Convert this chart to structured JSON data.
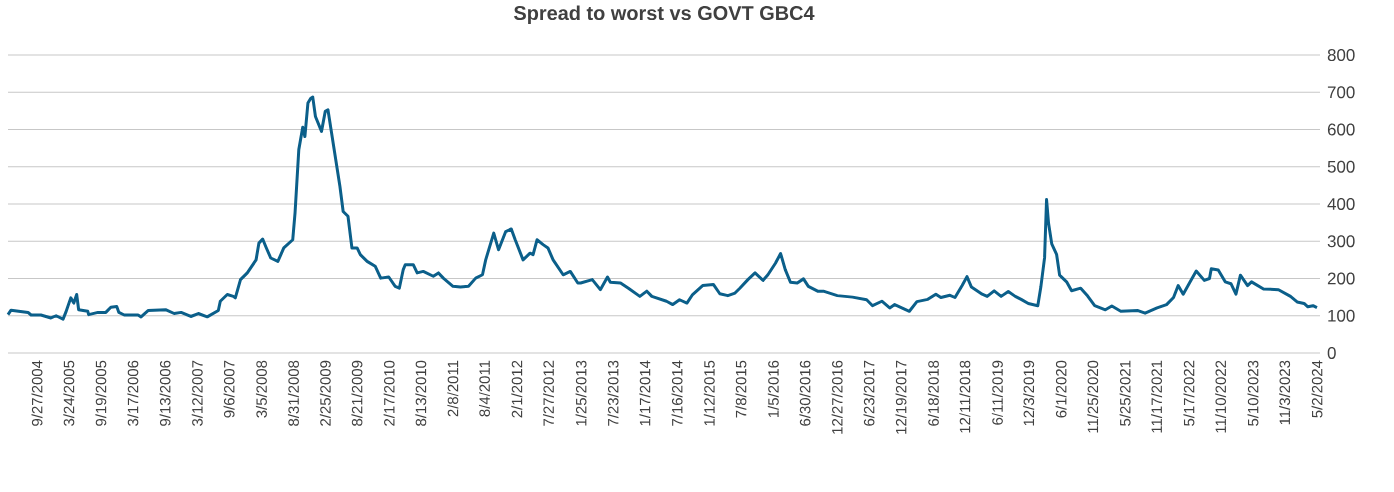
{
  "chart_data": {
    "type": "line",
    "title": "Spread to worst vs GOVT GBC4",
    "color": "#0b5f8a",
    "marker": "none",
    "line_style": "solid",
    "grid": "y",
    "x": [
      "2004-04-18",
      "2004-05-05",
      "2004-08-08",
      "2004-08-25",
      "2004-10-19",
      "2004-12-14",
      "2005-01-12",
      "2005-02-20",
      "2005-03-07",
      "2005-04-04",
      "2005-04-21",
      "2005-05-07",
      "2005-05-18",
      "2005-07-08",
      "2005-07-13",
      "2005-09-03",
      "2005-10-17",
      "2005-11-14",
      "2005-12-17",
      "2005-12-29",
      "2006-01-28",
      "2006-04-15",
      "2006-05-02",
      "2006-06-10",
      "2006-09-19",
      "2006-11-03",
      "2006-12-12",
      "2007-02-04",
      "2007-03-18",
      "2007-05-07",
      "2007-07-08",
      "2007-07-19",
      "2007-08-27",
      "2007-09-30",
      "2007-10-11",
      "2007-11-09",
      "2007-12-17",
      "2008-02-04",
      "2008-02-20",
      "2008-03-12",
      "2008-03-29",
      "2008-04-26",
      "2008-06-05",
      "2008-07-08",
      "2008-08-27",
      "2008-09-09",
      "2008-09-30",
      "2008-10-22",
      "2008-11-03",
      "2008-11-20",
      "2008-12-06",
      "2008-12-17",
      "2009-01-01",
      "2009-02-04",
      "2009-02-25",
      "2009-03-12",
      "2009-04-10",
      "2009-05-18",
      "2009-06-05",
      "2009-07-02",
      "2009-07-24",
      "2009-08-22",
      "2009-09-09",
      "2009-10-17",
      "2009-12-01",
      "2010-01-01",
      "2010-02-15",
      "2010-03-23",
      "2010-04-15",
      "2010-05-07",
      "2010-05-18",
      "2010-07-02",
      "2010-07-24",
      "2010-08-27",
      "2010-10-22",
      "2010-11-20",
      "2010-12-17",
      "2011-02-09",
      "2011-03-23",
      "2011-05-07",
      "2011-06-16",
      "2011-07-24",
      "2011-08-11",
      "2011-09-25",
      "2011-10-22",
      "2011-12-01",
      "2012-01-01",
      "2012-01-23",
      "2012-03-07",
      "2012-04-15",
      "2012-05-02",
      "2012-05-24",
      "2012-06-27",
      "2012-07-24",
      "2012-08-22",
      "2012-10-17",
      "2012-11-26",
      "2013-01-07",
      "2013-01-23",
      "2013-03-29",
      "2013-05-13",
      "2013-06-22",
      "2013-07-08",
      "2013-09-03",
      "2013-10-17",
      "2013-12-20",
      "2014-01-28",
      "2014-02-25",
      "2014-05-18",
      "2014-06-22",
      "2014-07-30",
      "2014-09-09",
      "2014-10-11",
      "2014-12-06",
      "2015-02-04",
      "2015-03-12",
      "2015-04-26",
      "2015-06-05",
      "2015-07-02",
      "2015-08-16",
      "2015-09-25",
      "2015-11-09",
      "2015-12-06",
      "2016-01-17",
      "2016-02-15",
      "2016-03-12",
      "2016-04-10",
      "2016-05-18",
      "2016-06-22",
      "2016-07-19",
      "2016-09-09",
      "2016-10-11",
      "2016-12-28",
      "2017-03-23",
      "2017-06-10",
      "2017-07-13",
      "2017-09-03",
      "2017-10-17",
      "2017-11-14",
      "2018-02-04",
      "2018-03-18",
      "2018-05-18",
      "2018-07-02",
      "2018-07-30",
      "2018-09-19",
      "2018-10-17",
      "2018-11-26",
      "2018-12-23",
      "2019-01-17",
      "2019-03-18",
      "2019-04-15",
      "2019-05-24",
      "2019-07-02",
      "2019-08-11",
      "2019-09-19",
      "2019-10-22",
      "2019-12-01",
      "2020-01-23",
      "2020-02-09",
      "2020-03-01",
      "2020-03-12",
      "2020-03-23",
      "2020-04-10",
      "2020-05-07",
      "2020-05-24",
      "2020-07-02",
      "2020-07-30",
      "2020-09-19",
      "2020-10-28",
      "2020-12-06",
      "2021-02-04",
      "2021-03-12",
      "2021-05-01",
      "2021-08-05",
      "2021-09-14",
      "2021-11-20",
      "2022-01-12",
      "2022-02-20",
      "2022-03-18",
      "2022-04-15",
      "2022-05-24",
      "2022-06-27",
      "2022-08-11",
      "2022-09-09",
      "2022-09-19",
      "2022-10-28",
      "2022-12-06",
      "2023-01-07",
      "2023-02-04",
      "2023-03-01",
      "2023-04-10",
      "2023-05-02",
      "2023-07-08",
      "2023-09-30",
      "2023-12-06",
      "2024-01-12",
      "2024-02-20",
      "2024-03-12",
      "2024-04-10",
      "2024-05-02"
    ],
    "values": [
      103,
      115,
      109,
      102,
      102,
      94,
      100,
      91,
      109,
      148,
      134,
      157,
      116,
      112,
      103,
      109,
      109,
      123,
      125,
      109,
      102,
      102,
      97,
      114,
      116,
      106,
      109,
      98,
      106,
      97,
      114,
      139,
      157,
      152,
      148,
      197,
      215,
      250,
      295,
      306,
      286,
      255,
      246,
      282,
      304,
      376,
      546,
      606,
      581,
      671,
      684,
      687,
      635,
      595,
      649,
      653,
      564,
      447,
      380,
      367,
      282,
      282,
      264,
      246,
      233,
      201,
      204,
      179,
      174,
      224,
      237,
      237,
      215,
      219,
      206,
      215,
      201,
      179,
      177,
      179,
      201,
      210,
      250,
      322,
      277,
      326,
      333,
      304,
      250,
      268,
      264,
      304,
      291,
      282,
      250,
      210,
      219,
      188,
      188,
      197,
      170,
      204,
      190,
      188,
      174,
      152,
      166,
      152,
      139,
      130,
      143,
      134,
      157,
      181,
      184,
      159,
      154,
      161,
      174,
      197,
      215,
      195,
      210,
      241,
      267,
      224,
      190,
      188,
      199,
      179,
      166,
      166,
      154,
      150,
      143,
      127,
      139,
      121,
      130,
      112,
      138,
      144,
      158,
      149,
      155,
      149,
      181,
      205,
      177,
      158,
      152,
      167,
      152,
      165,
      152,
      144,
      133,
      127,
      177,
      256,
      412,
      349,
      293,
      265,
      209,
      191,
      167,
      174,
      153,
      127,
      116,
      126,
      112,
      114,
      107,
      121,
      130,
      149,
      181,
      158,
      191,
      220,
      195,
      200,
      226,
      223,
      191,
      186,
      158,
      209,
      181,
      191,
      172,
      170,
      152,
      137,
      133,
      124,
      127,
      122
    ],
    "xlim": [
      "2004-04-18",
      "2024-05-19"
    ],
    "xticks": [
      {
        "value": "2004-09-27",
        "label": "9/27/2004"
      },
      {
        "value": "2005-03-24",
        "label": "3/24/2005"
      },
      {
        "value": "2005-09-19",
        "label": "9/19/2005"
      },
      {
        "value": "2006-03-17",
        "label": "3/17/2006"
      },
      {
        "value": "2006-09-13",
        "label": "9/13/2006"
      },
      {
        "value": "2007-03-12",
        "label": "3/12/2007"
      },
      {
        "value": "2007-09-06",
        "label": "9/6/2007"
      },
      {
        "value": "2008-03-05",
        "label": "3/5/2008"
      },
      {
        "value": "2008-08-31",
        "label": "8/31/2008"
      },
      {
        "value": "2009-02-25",
        "label": "2/25/2009"
      },
      {
        "value": "2009-08-21",
        "label": "8/21/2009"
      },
      {
        "value": "2010-02-17",
        "label": "2/17/2010"
      },
      {
        "value": "2010-08-13",
        "label": "8/13/2010"
      },
      {
        "value": "2011-02-08",
        "label": "2/8/2011"
      },
      {
        "value": "2011-08-04",
        "label": "8/4/2011"
      },
      {
        "value": "2012-02-01",
        "label": "2/1/2012"
      },
      {
        "value": "2012-07-27",
        "label": "7/27/2012"
      },
      {
        "value": "2013-01-25",
        "label": "1/25/2013"
      },
      {
        "value": "2013-07-23",
        "label": "7/23/2013"
      },
      {
        "value": "2014-01-17",
        "label": "1/17/2014"
      },
      {
        "value": "2014-07-16",
        "label": "7/16/2014"
      },
      {
        "value": "2015-01-12",
        "label": "1/12/2015"
      },
      {
        "value": "2015-07-08",
        "label": "7/8/2015"
      },
      {
        "value": "2016-01-05",
        "label": "1/5/2016"
      },
      {
        "value": "2016-06-30",
        "label": "6/30/2016"
      },
      {
        "value": "2016-12-27",
        "label": "12/27/2016"
      },
      {
        "value": "2017-06-23",
        "label": "6/23/2017"
      },
      {
        "value": "2017-12-19",
        "label": "12/19/2017"
      },
      {
        "value": "2018-06-18",
        "label": "6/18/2018"
      },
      {
        "value": "2018-12-11",
        "label": "12/11/2018"
      },
      {
        "value": "2019-06-11",
        "label": "6/11/2019"
      },
      {
        "value": "2019-12-03",
        "label": "12/3/2019"
      },
      {
        "value": "2020-06-01",
        "label": "6/1/2020"
      },
      {
        "value": "2020-11-25",
        "label": "11/25/2020"
      },
      {
        "value": "2021-05-25",
        "label": "5/25/2021"
      },
      {
        "value": "2021-11-17",
        "label": "11/17/2021"
      },
      {
        "value": "2022-05-17",
        "label": "5/17/2022"
      },
      {
        "value": "2022-11-10",
        "label": "11/10/2022"
      },
      {
        "value": "2023-05-10",
        "label": "5/10/2023"
      },
      {
        "value": "2023-11-03",
        "label": "11/3/2023"
      },
      {
        "value": "2024-05-02",
        "label": "5/2/2024"
      }
    ],
    "ylim": [
      0,
      800
    ],
    "yticks": [
      0,
      100,
      200,
      300,
      400,
      500,
      600,
      700,
      800
    ]
  }
}
